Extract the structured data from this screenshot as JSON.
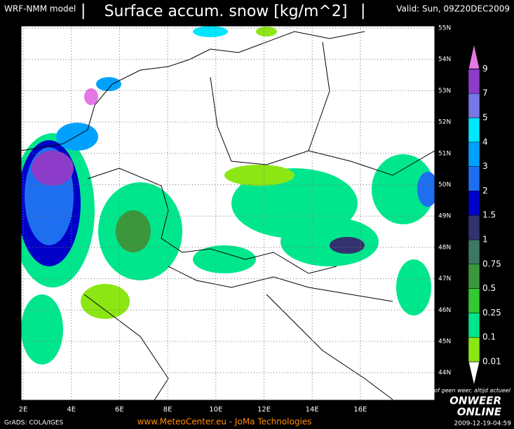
{
  "header": {
    "model": "WRF-NMM model",
    "title": "Surface accum. snow [kg/m^2]",
    "valid": "Valid: Sun, 09Z20DEC2009"
  },
  "map": {
    "lon_labels": [
      "2E",
      "4E",
      "6E",
      "8E",
      "10E",
      "12E",
      "14E",
      "16E"
    ],
    "lat_labels": [
      "55N",
      "54N",
      "53N",
      "52N",
      "51N",
      "50N",
      "49N",
      "48N",
      "47N",
      "46N",
      "45N",
      "44N"
    ]
  },
  "colorbar": {
    "levels": [
      0.01,
      0.1,
      0.25,
      0.5,
      0.75,
      1,
      1.5,
      2,
      3,
      4,
      5,
      7,
      9
    ],
    "colors": [
      "#ffffff",
      "#8ce614",
      "#00e68c",
      "#32c832",
      "#3c963c",
      "#3c7864",
      "#32326e",
      "#0000c8",
      "#1e6ef0",
      "#00a0ff",
      "#00e6ff",
      "#7878e6",
      "#8c3cc8",
      "#e678e6",
      "#c8147f"
    ]
  },
  "footer": {
    "grads": "GrADS: COLA/IGES",
    "site": "www.MeteoCenter.eu  -  JoMa Technologies",
    "timestamp": "2009-12-19-04:59"
  },
  "logo": {
    "slogan": "Weer of geen weer, altijd actueel",
    "line1": "ONWEER",
    "line2": "ONLINE"
  }
}
